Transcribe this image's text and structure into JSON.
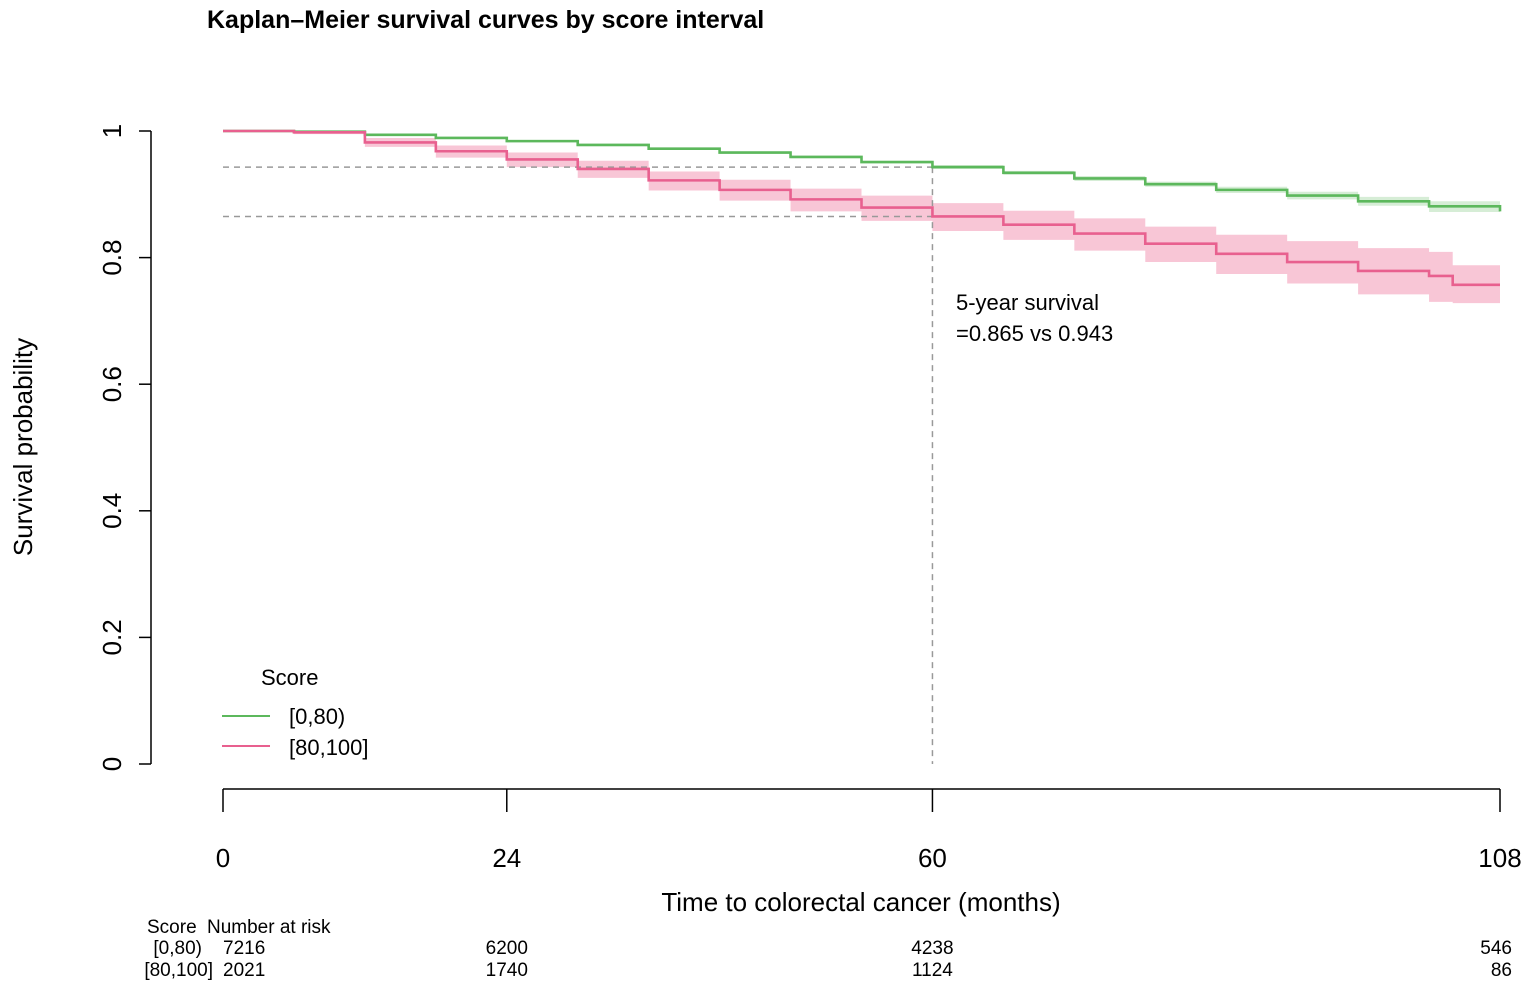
{
  "chart_data": {
    "type": "line",
    "title": "Kaplan–Meier survival curves by score interval",
    "xlabel": "Time to colorectal cancer (months)",
    "ylabel": "Survival probability",
    "xlim": [
      0,
      108
    ],
    "ylim": [
      0,
      1
    ],
    "x_ticks": [
      0,
      24,
      60,
      108
    ],
    "x_tick_labels": [
      "0",
      "24",
      "60",
      "108"
    ],
    "y_ticks": [
      0,
      0.2,
      0.4,
      0.6,
      0.8,
      1
    ],
    "y_tick_labels": [
      "0",
      "0.2",
      "0.4",
      "0.6",
      "0.8",
      "1"
    ],
    "legend": {
      "title": "Score",
      "position": "bottom-left",
      "entries": [
        "[0,80)",
        "[80,100]"
      ]
    },
    "series": [
      {
        "name": "[0,80)",
        "color": "#5cb85c",
        "band_color": "#cfeacf",
        "x": [
          0,
          6,
          12,
          18,
          24,
          30,
          36,
          42,
          48,
          54,
          60,
          66,
          72,
          78,
          84,
          90,
          96,
          102,
          108
        ],
        "y": [
          1.0,
          0.999,
          0.994,
          0.989,
          0.984,
          0.978,
          0.972,
          0.966,
          0.959,
          0.951,
          0.943,
          0.934,
          0.925,
          0.916,
          0.907,
          0.898,
          0.889,
          0.881,
          0.873
        ],
        "lower": [
          1.0,
          0.998,
          0.993,
          0.988,
          0.982,
          0.976,
          0.97,
          0.964,
          0.957,
          0.949,
          0.94,
          0.931,
          0.921,
          0.912,
          0.902,
          0.892,
          0.882,
          0.872,
          0.863
        ],
        "upper": [
          1.0,
          1.0,
          0.996,
          0.991,
          0.986,
          0.98,
          0.974,
          0.968,
          0.961,
          0.953,
          0.946,
          0.937,
          0.929,
          0.92,
          0.912,
          0.904,
          0.896,
          0.889,
          0.882
        ]
      },
      {
        "name": "[80,100]",
        "color": "#e8608f",
        "band_color": "#f7bccf",
        "x": [
          0,
          6,
          12,
          18,
          24,
          30,
          36,
          42,
          48,
          54,
          60,
          66,
          72,
          78,
          84,
          90,
          96,
          102,
          104,
          108
        ],
        "y": [
          1.0,
          0.998,
          0.982,
          0.968,
          0.955,
          0.94,
          0.922,
          0.907,
          0.892,
          0.879,
          0.865,
          0.852,
          0.838,
          0.822,
          0.806,
          0.793,
          0.779,
          0.771,
          0.757,
          0.757
        ],
        "lower": [
          1.0,
          0.995,
          0.975,
          0.958,
          0.943,
          0.926,
          0.906,
          0.89,
          0.873,
          0.858,
          0.842,
          0.828,
          0.811,
          0.793,
          0.774,
          0.759,
          0.742,
          0.73,
          0.728,
          0.728
        ],
        "upper": [
          1.0,
          1.0,
          0.989,
          0.977,
          0.966,
          0.953,
          0.936,
          0.923,
          0.909,
          0.898,
          0.886,
          0.874,
          0.862,
          0.849,
          0.836,
          0.826,
          0.815,
          0.809,
          0.788,
          0.788
        ]
      }
    ],
    "reference_lines": {
      "x": 60,
      "y": [
        0.943,
        0.865
      ]
    },
    "annotation": {
      "line1": "5-year survival",
      "line2": "=0.865 vs 0.943"
    },
    "risk_table": {
      "header_score": "Score",
      "header_risk": "Number at risk",
      "times": [
        0,
        24,
        60,
        108
      ],
      "rows": [
        {
          "label": "[0,80)",
          "values": [
            "7216",
            "6200",
            "4238",
            "546"
          ]
        },
        {
          "label": "[80,100]",
          "values": [
            "2021",
            "1740",
            "1124",
            "86"
          ]
        }
      ]
    }
  }
}
